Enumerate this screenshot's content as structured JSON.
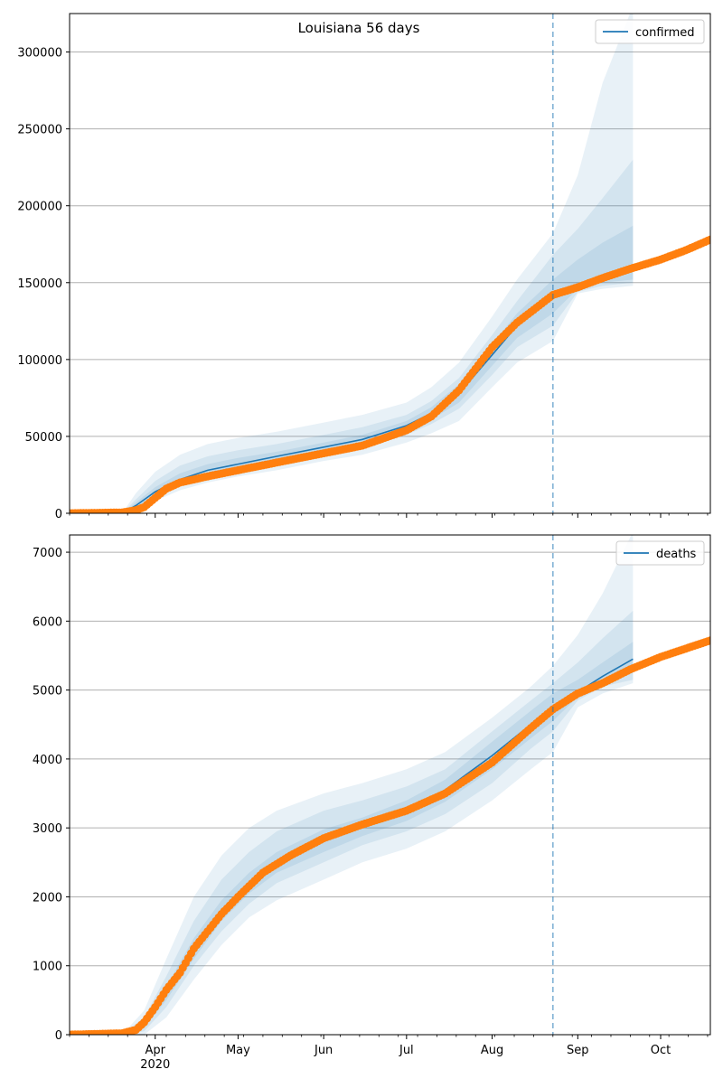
{
  "figure": {
    "suptitle": "Louisiana 56 days"
  },
  "colors": {
    "model_line": "#1f77b4",
    "observed_points": "#ff7f0e",
    "band": "#1f77b4",
    "grid": "#b0b0b0",
    "forecast_marker": "#1f77b4"
  },
  "chart_data": [
    {
      "type": "line",
      "name": "confirmed",
      "legend": [
        "confirmed"
      ],
      "legend_position": "top-right",
      "grid": "horizontal",
      "x_range": [
        "2020-03-01",
        "2020-10-19"
      ],
      "ylim": [
        0,
        325000
      ],
      "yticks": [
        0,
        50000,
        100000,
        150000,
        200000,
        250000,
        300000
      ],
      "x_tick_labels": [
        "Apr\n2020",
        "May",
        "Jun",
        "Jul",
        "Aug",
        "Sep",
        "Oct"
      ],
      "forecast_start": "2020-08-23",
      "forecast_end": "2020-09-21",
      "model_line": {
        "x": [
          "2020-03-01",
          "2020-03-20",
          "2020-03-25",
          "2020-04-01",
          "2020-04-10",
          "2020-04-20",
          "2020-05-01",
          "2020-05-15",
          "2020-06-01",
          "2020-06-15",
          "2020-07-01",
          "2020-07-10",
          "2020-07-20",
          "2020-08-01",
          "2020-08-10",
          "2020-08-23",
          "2020-09-01",
          "2020-09-10",
          "2020-09-21"
        ],
        "y": [
          0,
          0,
          5000,
          14000,
          22000,
          28000,
          32000,
          37000,
          43000,
          48000,
          57000,
          65000,
          78000,
          103000,
          122000,
          140000,
          148000,
          154000,
          160000
        ]
      },
      "bands": [
        {
          "level": "outer",
          "x": [
            "2020-03-20",
            "2020-03-25",
            "2020-04-01",
            "2020-04-10",
            "2020-04-20",
            "2020-05-01",
            "2020-05-15",
            "2020-06-01",
            "2020-06-15",
            "2020-07-01",
            "2020-07-10",
            "2020-07-20",
            "2020-08-01",
            "2020-08-10",
            "2020-08-23",
            "2020-09-01",
            "2020-09-10",
            "2020-09-21"
          ],
          "lower": [
            0,
            0,
            8000,
            15000,
            20000,
            24000,
            28000,
            34000,
            38000,
            46000,
            52000,
            60000,
            82000,
            98000,
            112000,
            143000,
            146000,
            148000
          ],
          "upper": [
            0,
            13000,
            27000,
            38000,
            45000,
            49000,
            53000,
            59000,
            64000,
            72000,
            82000,
            98000,
            128000,
            152000,
            182000,
            220000,
            280000,
            330000
          ]
        },
        {
          "level": "middle",
          "x": [
            "2020-03-20",
            "2020-03-25",
            "2020-04-01",
            "2020-04-10",
            "2020-04-20",
            "2020-05-01",
            "2020-05-15",
            "2020-06-01",
            "2020-06-15",
            "2020-07-01",
            "2020-07-10",
            "2020-07-20",
            "2020-08-01",
            "2020-08-10",
            "2020-08-23",
            "2020-09-01",
            "2020-09-10",
            "2020-09-21"
          ],
          "lower": [
            0,
            2000,
            11000,
            18000,
            23000,
            27000,
            32000,
            38000,
            42000,
            51000,
            58000,
            68000,
            90000,
            108000,
            122000,
            144000,
            148000,
            150000
          ],
          "upper": [
            0,
            9000,
            21000,
            31000,
            37000,
            41000,
            45000,
            51000,
            56000,
            64000,
            73000,
            88000,
            116000,
            138000,
            168000,
            185000,
            205000,
            230000
          ]
        },
        {
          "level": "inner",
          "x": [
            "2020-03-20",
            "2020-03-25",
            "2020-04-01",
            "2020-04-10",
            "2020-04-20",
            "2020-05-01",
            "2020-05-15",
            "2020-06-01",
            "2020-06-15",
            "2020-07-01",
            "2020-07-10",
            "2020-07-20",
            "2020-08-01",
            "2020-08-10",
            "2020-08-23",
            "2020-09-01",
            "2020-09-10",
            "2020-09-21"
          ],
          "lower": [
            0,
            3000,
            12000,
            20000,
            25000,
            29000,
            34000,
            40000,
            45000,
            54000,
            61000,
            72000,
            96000,
            114000,
            130000,
            146000,
            150000,
            152000
          ],
          "upper": [
            0,
            7000,
            17000,
            26000,
            32000,
            36000,
            40000,
            46000,
            51000,
            60000,
            69000,
            84000,
            110000,
            130000,
            152000,
            165000,
            176000,
            187000
          ]
        }
      ],
      "observed": {
        "x": [
          "2020-03-01",
          "2020-03-20",
          "2020-03-25",
          "2020-03-28",
          "2020-04-01",
          "2020-04-05",
          "2020-04-10",
          "2020-04-15",
          "2020-04-20",
          "2020-05-01",
          "2020-05-15",
          "2020-06-01",
          "2020-06-15",
          "2020-07-01",
          "2020-07-10",
          "2020-07-20",
          "2020-08-01",
          "2020-08-10",
          "2020-08-23",
          "2020-09-01",
          "2020-09-10",
          "2020-09-20",
          "2020-10-01",
          "2020-10-10",
          "2020-10-19"
        ],
        "y": [
          0,
          500,
          2000,
          4000,
          10000,
          16000,
          20000,
          22000,
          24000,
          28000,
          33000,
          39000,
          44000,
          54000,
          63000,
          80000,
          108000,
          124000,
          142000,
          147000,
          153000,
          159000,
          165000,
          171000,
          178000
        ]
      }
    },
    {
      "type": "line",
      "name": "deaths",
      "legend": [
        "deaths"
      ],
      "legend_position": "top-right",
      "grid": "horizontal",
      "x_range": [
        "2020-03-01",
        "2020-10-19"
      ],
      "ylim": [
        0,
        7250
      ],
      "yticks": [
        0,
        1000,
        2000,
        3000,
        4000,
        5000,
        6000,
        7000
      ],
      "x_tick_labels": [
        "Apr\n2020",
        "May",
        "Jun",
        "Jul",
        "Aug",
        "Sep",
        "Oct"
      ],
      "forecast_start": "2020-08-23",
      "forecast_end": "2020-09-21",
      "model_line": {
        "x": [
          "2020-03-01",
          "2020-03-20",
          "2020-03-28",
          "2020-04-05",
          "2020-04-15",
          "2020-04-25",
          "2020-05-05",
          "2020-05-15",
          "2020-06-01",
          "2020-06-15",
          "2020-07-01",
          "2020-07-15",
          "2020-08-01",
          "2020-08-15",
          "2020-08-23",
          "2020-09-01",
          "2020-09-10",
          "2020-09-21"
        ],
        "y": [
          0,
          0,
          150,
          600,
          1250,
          1800,
          2200,
          2500,
          2820,
          3020,
          3250,
          3550,
          4050,
          4500,
          4740,
          4970,
          5200,
          5450
        ]
      },
      "bands": [
        {
          "level": "outer",
          "x": [
            "2020-03-20",
            "2020-03-28",
            "2020-04-05",
            "2020-04-15",
            "2020-04-25",
            "2020-05-05",
            "2020-05-15",
            "2020-06-01",
            "2020-06-15",
            "2020-07-01",
            "2020-07-15",
            "2020-08-01",
            "2020-08-15",
            "2020-08-23",
            "2020-09-01",
            "2020-09-10",
            "2020-09-21"
          ],
          "lower": [
            0,
            0,
            250,
            800,
            1300,
            1700,
            1950,
            2250,
            2500,
            2700,
            2950,
            3400,
            3850,
            4100,
            4750,
            4950,
            5100
          ],
          "upper": [
            0,
            350,
            1100,
            2000,
            2600,
            3000,
            3250,
            3500,
            3650,
            3850,
            4100,
            4600,
            5050,
            5350,
            5800,
            6400,
            7300
          ]
        },
        {
          "level": "middle",
          "x": [
            "2020-03-20",
            "2020-03-28",
            "2020-04-05",
            "2020-04-15",
            "2020-04-25",
            "2020-05-05",
            "2020-05-15",
            "2020-06-01",
            "2020-06-15",
            "2020-07-01",
            "2020-07-15",
            "2020-08-01",
            "2020-08-15",
            "2020-08-23",
            "2020-09-01",
            "2020-09-10",
            "2020-09-21"
          ],
          "lower": [
            0,
            50,
            400,
            1000,
            1500,
            1900,
            2200,
            2500,
            2750,
            2950,
            3200,
            3650,
            4150,
            4400,
            4850,
            5050,
            5150
          ],
          "upper": [
            0,
            250,
            850,
            1650,
            2250,
            2650,
            2950,
            3250,
            3400,
            3600,
            3850,
            4400,
            4850,
            5100,
            5400,
            5750,
            6150
          ]
        },
        {
          "level": "inner",
          "x": [
            "2020-03-20",
            "2020-03-28",
            "2020-04-05",
            "2020-04-15",
            "2020-04-25",
            "2020-05-05",
            "2020-05-15",
            "2020-06-01",
            "2020-06-15",
            "2020-07-01",
            "2020-07-15",
            "2020-08-01",
            "2020-08-15",
            "2020-08-23",
            "2020-09-01",
            "2020-09-10",
            "2020-09-21"
          ],
          "lower": [
            0,
            100,
            500,
            1100,
            1650,
            2050,
            2350,
            2650,
            2880,
            3100,
            3380,
            3850,
            4300,
            4550,
            4900,
            5120,
            5250
          ],
          "upper": [
            0,
            200,
            700,
            1400,
            1950,
            2350,
            2650,
            2980,
            3150,
            3400,
            3700,
            4250,
            4700,
            4950,
            5150,
            5400,
            5700
          ]
        }
      ],
      "observed": {
        "x": [
          "2020-03-01",
          "2020-03-20",
          "2020-03-25",
          "2020-03-28",
          "2020-04-01",
          "2020-04-05",
          "2020-04-10",
          "2020-04-15",
          "2020-04-20",
          "2020-04-25",
          "2020-05-01",
          "2020-05-10",
          "2020-05-20",
          "2020-06-01",
          "2020-06-15",
          "2020-07-01",
          "2020-07-15",
          "2020-08-01",
          "2020-08-15",
          "2020-08-23",
          "2020-09-01",
          "2020-09-10",
          "2020-09-20",
          "2020-10-01",
          "2020-10-10",
          "2020-10-19"
        ],
        "y": [
          0,
          20,
          70,
          180,
          400,
          650,
          900,
          1250,
          1500,
          1750,
          2000,
          2350,
          2600,
          2850,
          3050,
          3250,
          3500,
          3950,
          4450,
          4720,
          4950,
          5100,
          5300,
          5480,
          5600,
          5720
        ]
      }
    }
  ]
}
